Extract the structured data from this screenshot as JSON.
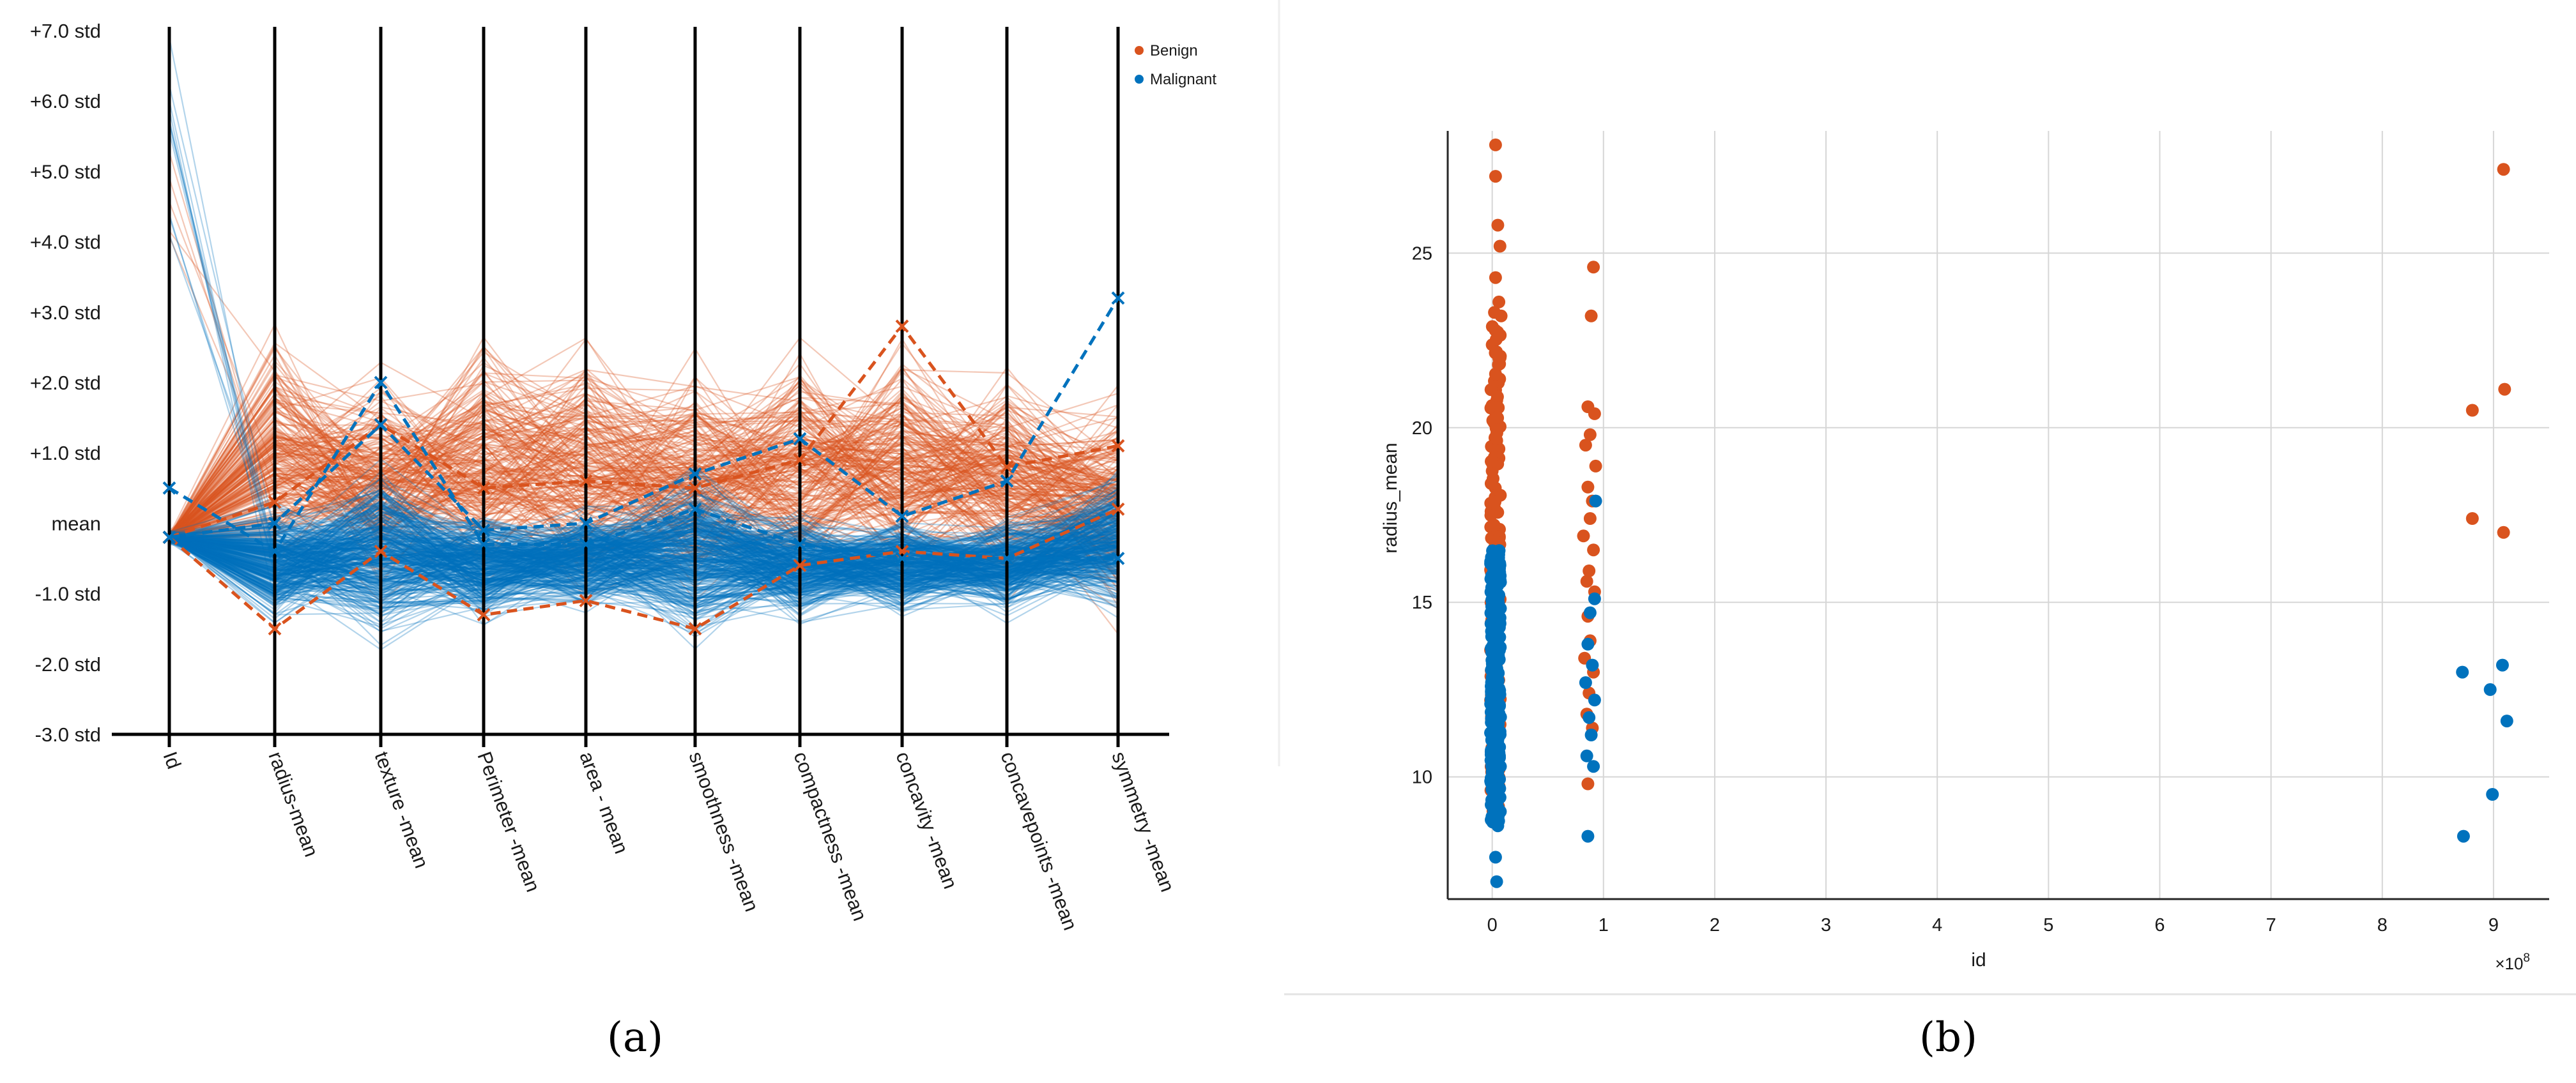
{
  "captions": {
    "a": "(a)",
    "b": "(b)"
  },
  "colors": {
    "benign": "#D9531E",
    "malignant": "#0072BD"
  },
  "chart_data": [
    {
      "type": "line",
      "subtype": "parallel-coordinates",
      "axes": [
        "Id",
        "radius-mean",
        "texture -mean",
        "Perimeter -mean",
        "area - mean",
        "smoothness -mean",
        "compactness -mean",
        "concavity -mean",
        "concavepoints -mean",
        "symmetry -mean"
      ],
      "y_ticks": [
        "+7.0 std",
        "+6.0 std",
        "+5.0 std",
        "+4.0 std",
        "+3.0 std",
        "+2.0 std",
        "+1.0 std",
        "mean",
        "-1.0 std",
        "-2.0 std",
        "-3.0 std"
      ],
      "ylim": [
        -3,
        7
      ],
      "legend": {
        "position": "top-right",
        "entries": [
          "Benign",
          "Malignant"
        ]
      },
      "series": [
        {
          "name": "Benign",
          "color": "#D9531E",
          "median_line": [
            -0.2,
            -1.5,
            -0.4,
            -1.3,
            -1.1,
            -1.5,
            -0.6,
            -0.4,
            -0.5,
            0.2
          ],
          "marked_line": [
            -0.2,
            0.3,
            1.4,
            0.5,
            0.6,
            0.5,
            0.9,
            2.8,
            0.8,
            1.1
          ],
          "line_count": 212
        },
        {
          "name": "Malignant",
          "color": "#0072BD",
          "median_line": [
            0.5,
            -0.4,
            2.0,
            -0.3,
            -0.3,
            0.2,
            -0.3,
            -0.5,
            -0.5,
            -0.5
          ],
          "marked_line": [
            -0.2,
            0.0,
            1.4,
            -0.1,
            0.0,
            0.7,
            1.2,
            0.1,
            0.6,
            3.2
          ],
          "line_count": 357
        }
      ]
    },
    {
      "type": "scatter",
      "xlabel": "id",
      "ylabel": "radius_mean",
      "x_exponent": "×10",
      "x_exponent_power": "8",
      "x_ticks": [
        "0",
        "1",
        "2",
        "3",
        "4",
        "5",
        "6",
        "7",
        "8",
        "9"
      ],
      "y_ticks": [
        "10",
        "15",
        "20",
        "25"
      ],
      "xlim": [
        -0.4,
        9.5
      ],
      "ylim": [
        6.5,
        28.5
      ],
      "grid": true,
      "series": [
        {
          "name": "Benign",
          "color": "#D9531E",
          "points": [
            [
              0.03,
              28.1
            ],
            [
              0.03,
              27.2
            ],
            [
              0.05,
              25.8
            ],
            [
              0.07,
              25.2
            ],
            [
              0.03,
              24.3
            ],
            [
              0.06,
              23.6
            ],
            [
              0.02,
              23.3
            ],
            [
              0.08,
              23.2
            ],
            [
              0.91,
              24.6
            ],
            [
              0.89,
              23.2
            ],
            [
              8.81,
              20.5
            ],
            [
              9.09,
              27.4
            ],
            [
              9.1,
              21.1
            ],
            [
              8.81,
              17.4
            ],
            [
              9.09,
              17.0
            ],
            [
              0.86,
              20.6
            ],
            [
              0.92,
              20.4
            ],
            [
              0.88,
              19.8
            ],
            [
              0.84,
              19.5
            ],
            [
              0.93,
              18.9
            ],
            [
              0.86,
              18.3
            ],
            [
              0.9,
              17.9
            ],
            [
              0.88,
              17.4
            ],
            [
              0.82,
              16.9
            ],
            [
              0.91,
              16.5
            ],
            [
              0.87,
              15.9
            ],
            [
              0.85,
              15.6
            ],
            [
              0.92,
              15.3
            ],
            [
              0.86,
              14.6
            ],
            [
              0.88,
              13.9
            ],
            [
              0.83,
              13.4
            ],
            [
              0.91,
              13.0
            ],
            [
              0.87,
              12.4
            ],
            [
              0.85,
              11.8
            ],
            [
              0.9,
              11.4
            ],
            [
              0.86,
              9.8
            ]
          ],
          "dense_column": {
            "x_center": 0.03,
            "x_spread": 0.09,
            "y_min": 9.0,
            "y_max": 23.0,
            "count": 180
          }
        },
        {
          "name": "Malignant",
          "color": "#0072BD",
          "points": [
            [
              0.93,
              17.9
            ],
            [
              0.92,
              15.1
            ],
            [
              0.88,
              14.7
            ],
            [
              0.86,
              13.8
            ],
            [
              0.9,
              13.2
            ],
            [
              0.84,
              12.7
            ],
            [
              0.92,
              12.2
            ],
            [
              0.87,
              11.7
            ],
            [
              0.89,
              11.2
            ],
            [
              0.85,
              10.6
            ],
            [
              0.91,
              10.3
            ],
            [
              0.86,
              8.3
            ],
            [
              8.72,
              13.0
            ],
            [
              9.08,
              13.2
            ],
            [
              8.97,
              12.5
            ],
            [
              9.12,
              11.6
            ],
            [
              8.99,
              9.5
            ],
            [
              8.73,
              8.3
            ],
            [
              0.04,
              7.0
            ],
            [
              0.03,
              7.7
            ],
            [
              0.05,
              8.6
            ]
          ],
          "dense_column": {
            "x_center": 0.03,
            "x_spread": 0.09,
            "y_min": 8.7,
            "y_max": 16.5,
            "count": 330
          }
        }
      ]
    }
  ]
}
